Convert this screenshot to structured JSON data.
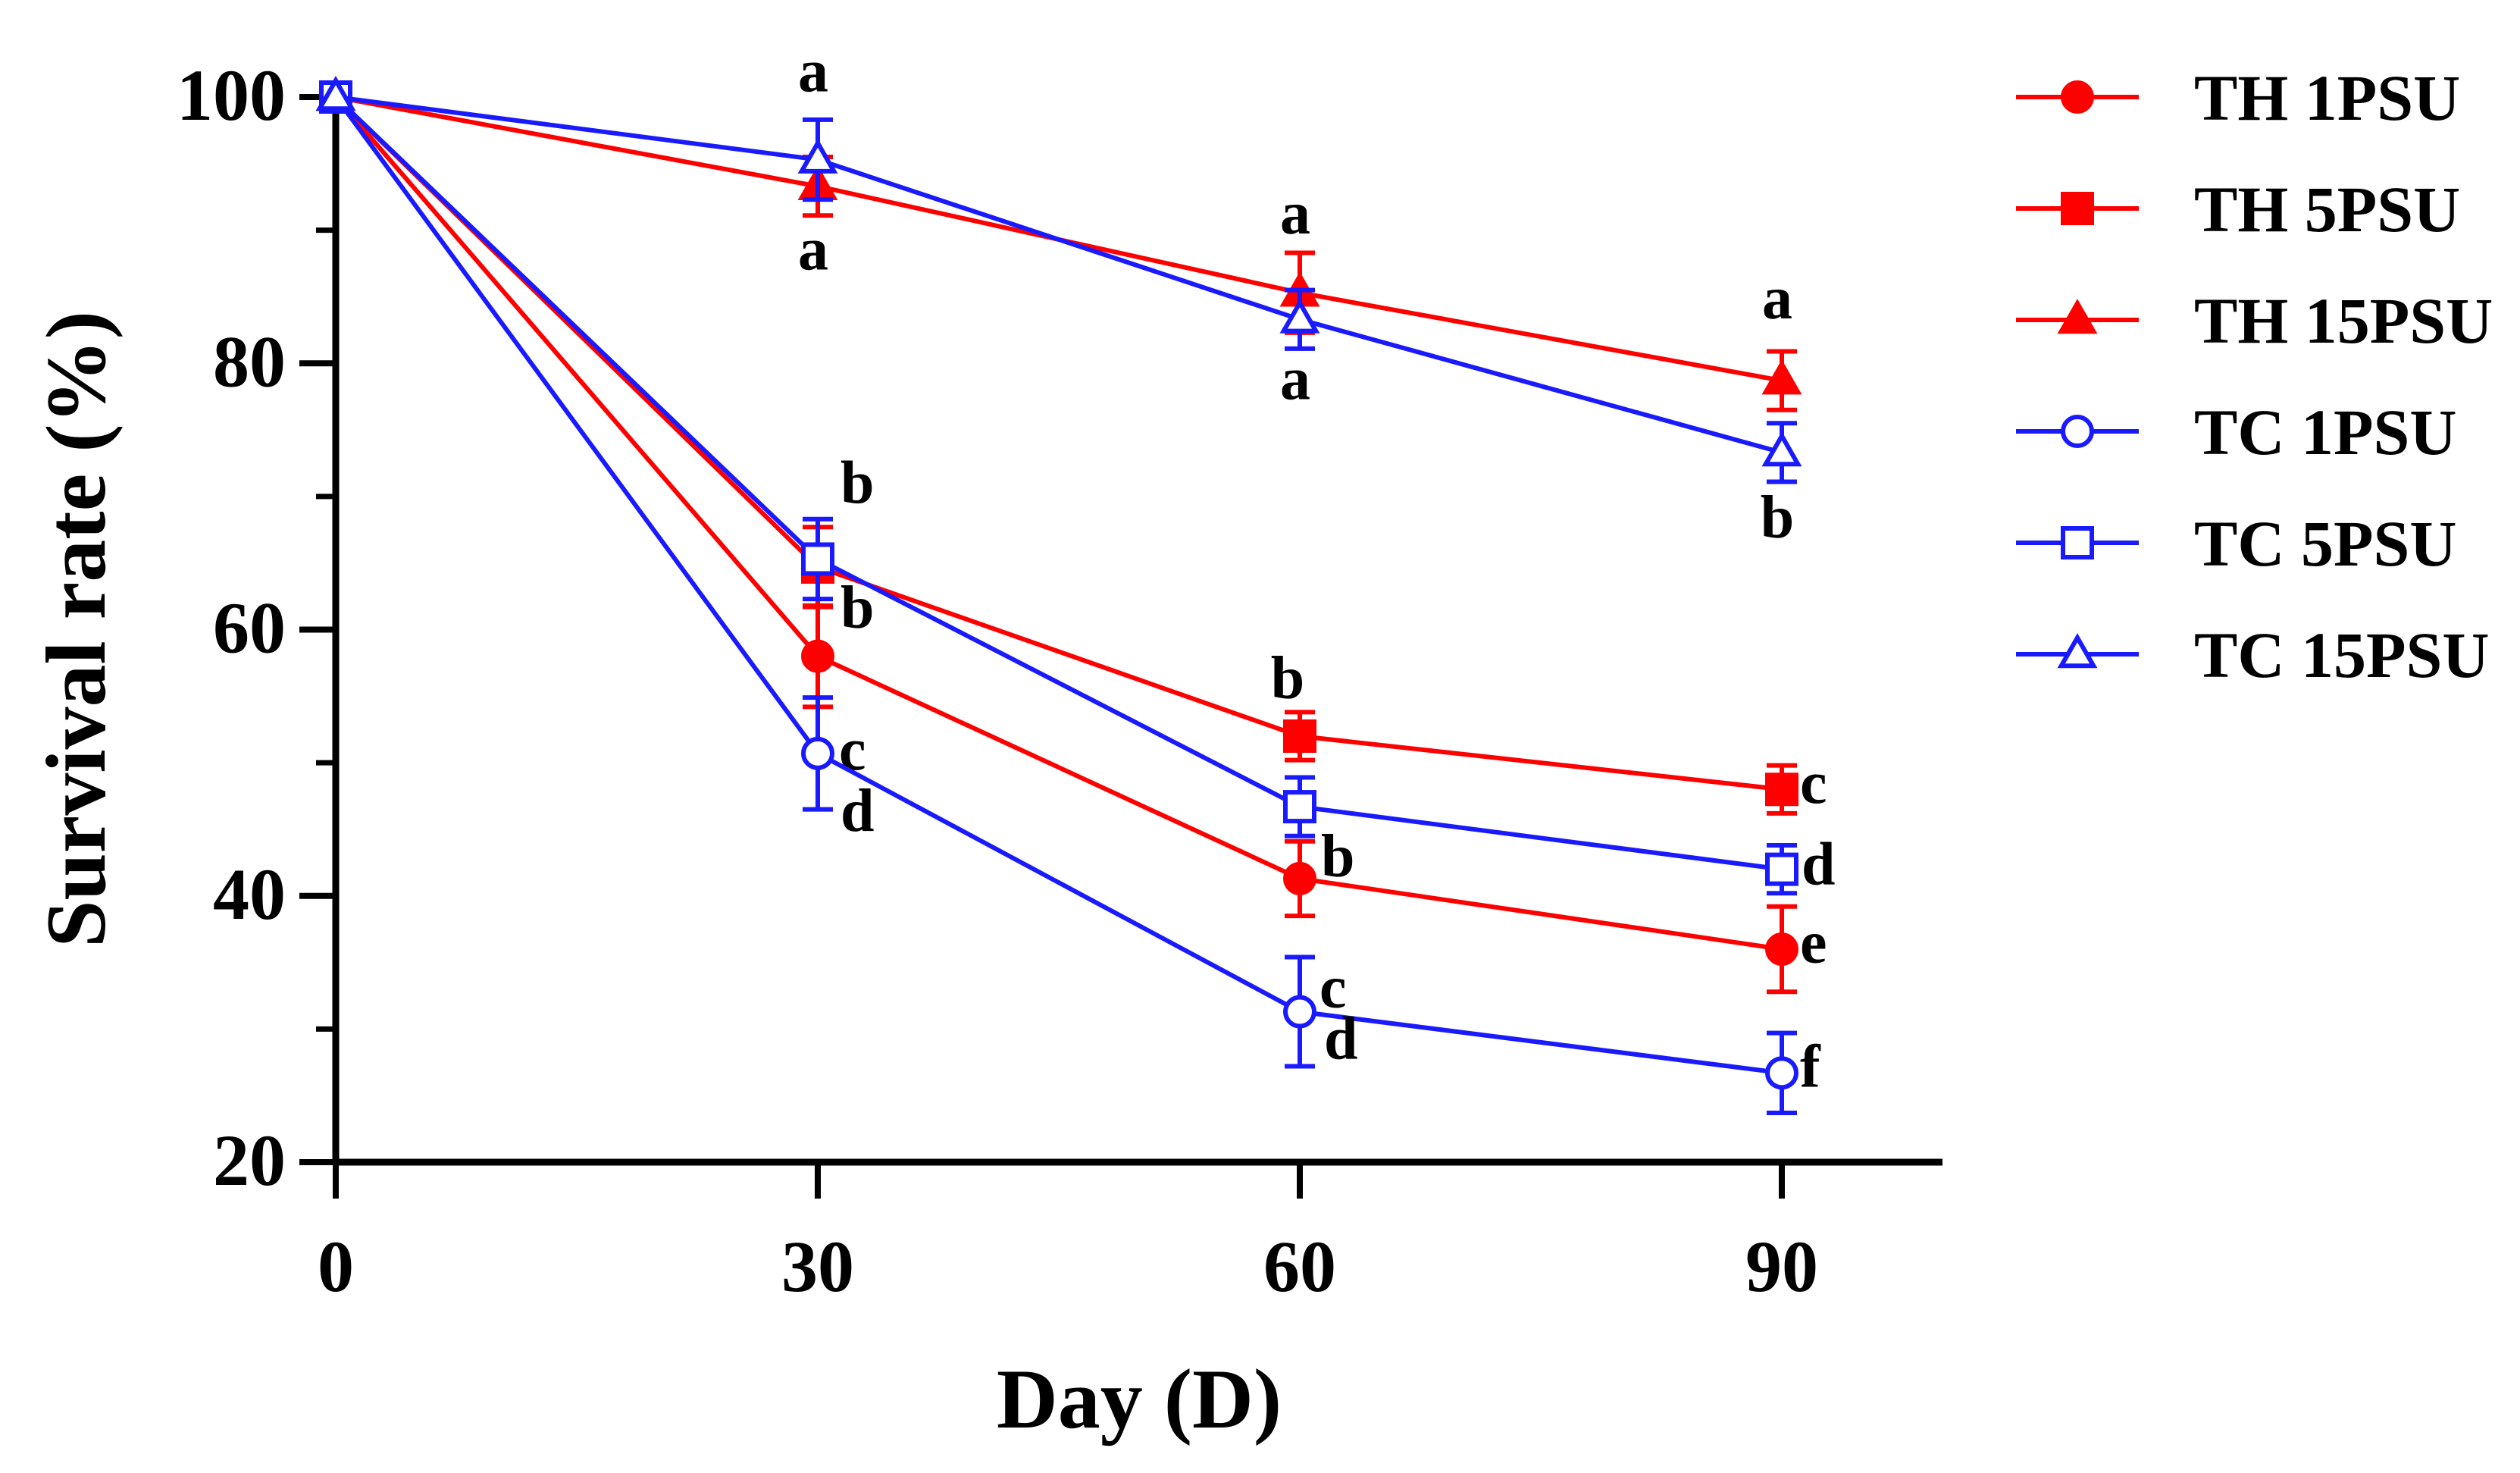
{
  "chart_data": {
    "type": "line",
    "xlabel": "Day (D)",
    "ylabel": "Survival rate (%)",
    "xlim": [
      0,
      100
    ],
    "ylim": [
      20,
      100
    ],
    "x_ticks": [
      "0",
      "30",
      "60",
      "90"
    ],
    "y_ticks": [
      "20",
      "40",
      "60",
      "80",
      "100"
    ],
    "legend_position": "right",
    "x": [
      0,
      30,
      60,
      90
    ],
    "series": [
      {
        "name": "TH 1PSU",
        "color": "#ff0000",
        "marker": "circle",
        "filled": true,
        "values": [
          100,
          58,
          41.3,
          36
        ],
        "errors": [
          0,
          3.8,
          2.8,
          3.2
        ],
        "letters": [
          "",
          "c",
          "c",
          "e"
        ]
      },
      {
        "name": "TH 5PSU",
        "color": "#ff0000",
        "marker": "square",
        "filled": true,
        "values": [
          100,
          64.7,
          52,
          48
        ],
        "errors": [
          0,
          3,
          1.8,
          1.8
        ],
        "letters": [
          "",
          "b",
          "b",
          "c"
        ]
      },
      {
        "name": "TH 15PSU",
        "color": "#ff0000",
        "marker": "triangle",
        "filled": true,
        "values": [
          100,
          93.3,
          85.3,
          78.7
        ],
        "errors": [
          0,
          2.2,
          3,
          2.2
        ],
        "letters": [
          "",
          "a",
          "a",
          "a"
        ]
      },
      {
        "name": "TC 1PSU",
        "color": "#1a1aff",
        "marker": "circle",
        "filled": false,
        "values": [
          100,
          50.7,
          31.3,
          26.7
        ],
        "errors": [
          0,
          4.2,
          4.1,
          3
        ],
        "letters": [
          "",
          "d",
          "d",
          "f"
        ]
      },
      {
        "name": "TC 5PSU",
        "color": "#1a1aff",
        "marker": "square",
        "filled": false,
        "values": [
          100,
          65.3,
          46.7,
          42
        ],
        "errors": [
          0,
          3,
          2.2,
          1.8
        ],
        "letters": [
          "",
          "b",
          "b",
          "d"
        ]
      },
      {
        "name": "TC 15PSU",
        "color": "#1a1aff",
        "marker": "triangle",
        "filled": false,
        "values": [
          100,
          95.3,
          83.3,
          73.3
        ],
        "errors": [
          0,
          3,
          2.2,
          2.2
        ],
        "letters": [
          "",
          "a",
          "a",
          "b"
        ]
      }
    ]
  }
}
